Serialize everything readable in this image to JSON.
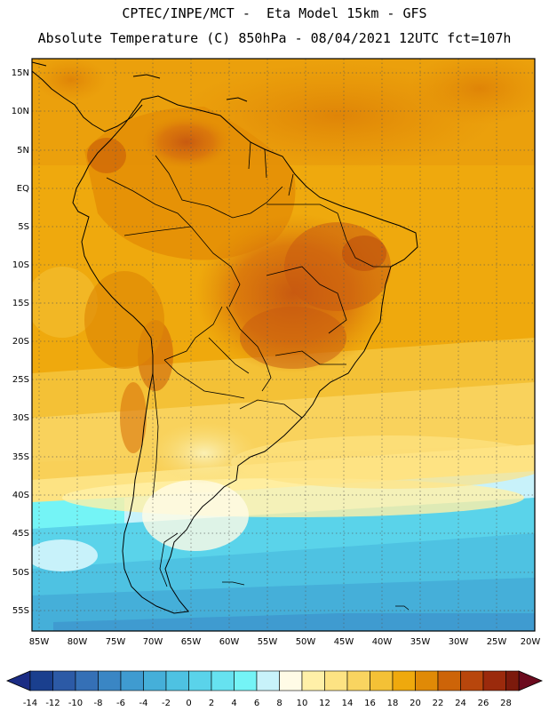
{
  "header": {
    "line1": "CPTEC/INPE/MCT -  Eta Model 15km - GFS",
    "line2": "Absolute Temperature (C) 850hPa - 08/04/2021 12UTC fct=107h"
  },
  "map": {
    "lat_labels": [
      "15N",
      "10N",
      "5N",
      "EQ",
      "5S",
      "10S",
      "15S",
      "20S",
      "25S",
      "30S",
      "35S",
      "40S",
      "45S",
      "50S",
      "55S"
    ],
    "lon_labels": [
      "85W",
      "80W",
      "75W",
      "70W",
      "65W",
      "60W",
      "55W",
      "50W",
      "45W",
      "40W",
      "35W",
      "30W",
      "25W",
      "20W"
    ]
  },
  "colorbar": {
    "ticks": [
      "-14",
      "-12",
      "-10",
      "-8",
      "-6",
      "-4",
      "-2",
      "0",
      "2",
      "4",
      "6",
      "8",
      "10",
      "12",
      "14",
      "16",
      "18",
      "20",
      "22",
      "24",
      "26",
      "28"
    ],
    "colors": [
      "#1a3f8e",
      "#2c5aa6",
      "#3570b6",
      "#3a86c4",
      "#3f9bd0",
      "#45afd9",
      "#4ec2e2",
      "#5ad3ea",
      "#66e2f0",
      "#74f4f6",
      "#c8f2fa",
      "#fffbe6",
      "#fff0a8",
      "#fde383",
      "#f9d460",
      "#f4c136",
      "#efa90d",
      "#e08a06",
      "#cd6408",
      "#b8460c",
      "#9b2a0c",
      "#7c1a0c"
    ],
    "low_arrow_color": "#1b2c84",
    "high_arrow_color": "#6c0b1e"
  }
}
